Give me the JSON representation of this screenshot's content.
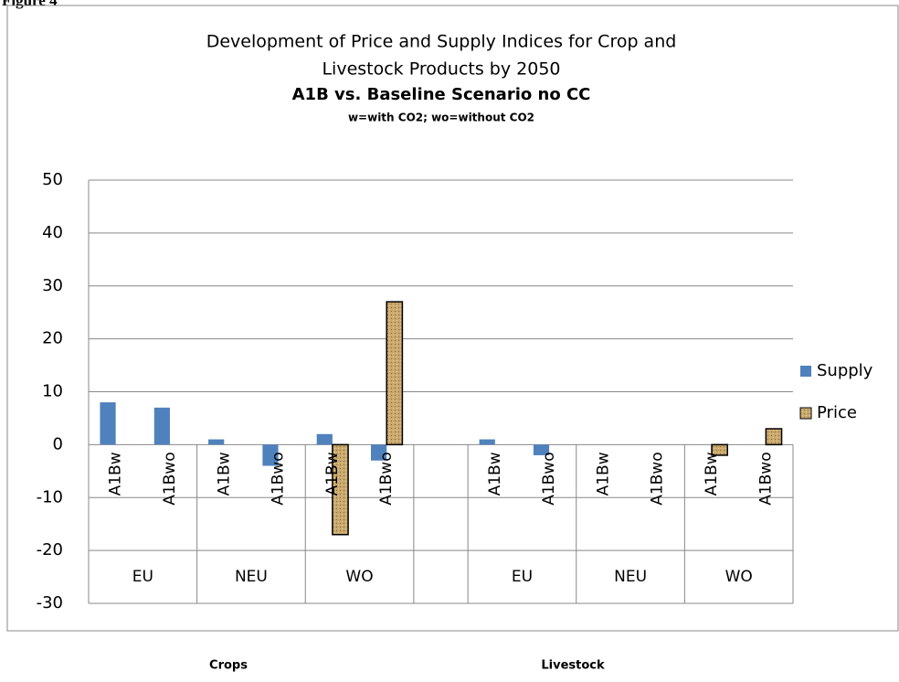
{
  "figure_label": "Figure 4",
  "chart_data": {
    "type": "bar",
    "title": [
      "Development of Price and Supply Indices for Crop and",
      "Livestock Products by 2050",
      "A1B vs. Baseline Scenario no CC"
    ],
    "subtitle": "w=with CO2; wo=without CO2",
    "categories": [
      "A1Bw",
      "A1Bwo",
      "A1Bw",
      "A1Bwo",
      "A1Bw",
      "A1Bwo",
      null,
      "A1Bw",
      "A1Bwo",
      "A1Bw",
      "A1Bwo",
      "A1Bw",
      "A1Bwo"
    ],
    "groups": [
      "EU",
      "EU",
      "NEU",
      "NEU",
      "WO",
      "WO",
      null,
      "EU",
      "EU",
      "NEU",
      "NEU",
      "WO",
      "WO"
    ],
    "sections": [
      "Crops",
      "Livestock"
    ],
    "series": [
      {
        "name": "Supply",
        "color": "#4f81bd",
        "values": [
          8,
          7,
          1,
          -4,
          2,
          -3,
          null,
          1,
          -2,
          0,
          0,
          0,
          0
        ]
      },
      {
        "name": "Price",
        "color": "#c9a86c",
        "values": [
          0,
          0,
          0,
          0,
          -17,
          27,
          null,
          0,
          0,
          0,
          0,
          -2,
          3
        ]
      }
    ],
    "ylim": [
      -30,
      50
    ],
    "yticks": [
      -30,
      -20,
      -10,
      0,
      10,
      20,
      30,
      40,
      50
    ],
    "grid": true,
    "legend": "right"
  }
}
